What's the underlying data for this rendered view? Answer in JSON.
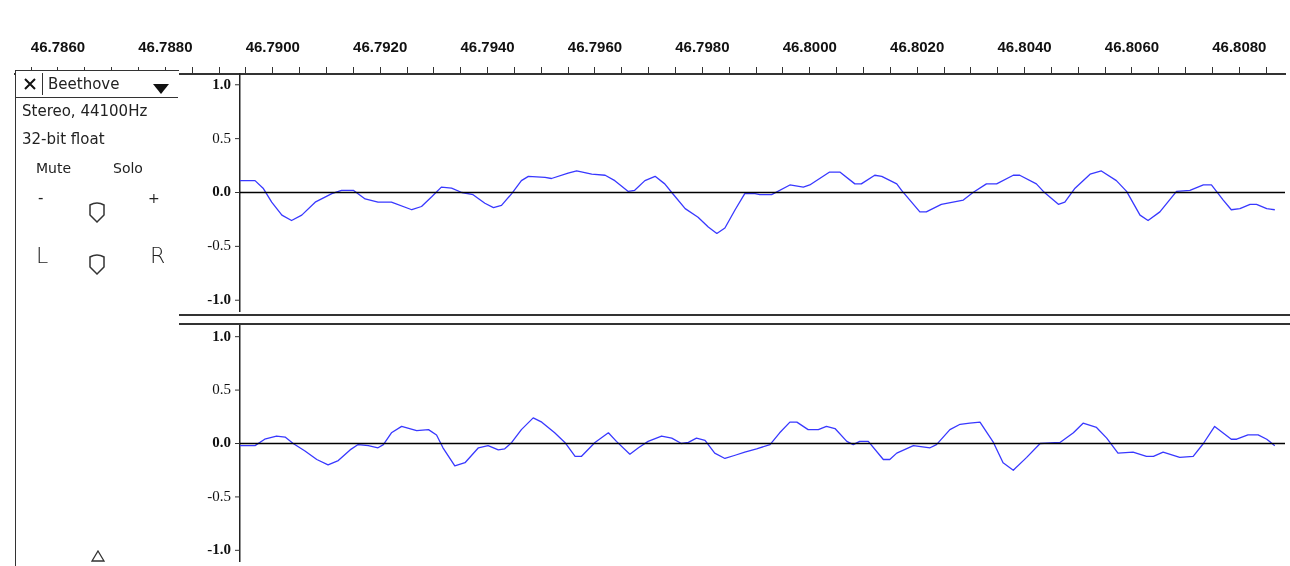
{
  "chart_data": [
    {
      "type": "line",
      "xlim": [
        46.7852,
        46.80885
      ],
      "ylim": [
        -1.1,
        1.1
      ],
      "xticks": [
        {
          "value": 46.7855,
          "label": null
        },
        {
          "value": 46.786,
          "label": "46.7860"
        },
        {
          "value": 46.7865,
          "label": null
        },
        {
          "value": 46.787,
          "label": null
        },
        {
          "value": 46.7875,
          "label": null
        },
        {
          "value": 46.788,
          "label": "46.7880"
        },
        {
          "value": 46.7885,
          "label": null
        },
        {
          "value": 46.789,
          "label": null
        },
        {
          "value": 46.7895,
          "label": null
        },
        {
          "value": 46.79,
          "label": "46.7900"
        },
        {
          "value": 46.7905,
          "label": null
        },
        {
          "value": 46.791,
          "label": null
        },
        {
          "value": 46.7915,
          "label": null
        },
        {
          "value": 46.792,
          "label": "46.7920"
        },
        {
          "value": 46.7925,
          "label": null
        },
        {
          "value": 46.793,
          "label": null
        },
        {
          "value": 46.7935,
          "label": null
        },
        {
          "value": 46.794,
          "label": "46.7940"
        },
        {
          "value": 46.7945,
          "label": null
        },
        {
          "value": 46.795,
          "label": null
        },
        {
          "value": 46.7955,
          "label": null
        },
        {
          "value": 46.796,
          "label": "46.7960"
        },
        {
          "value": 46.7965,
          "label": null
        },
        {
          "value": 46.797,
          "label": null
        },
        {
          "value": 46.7975,
          "label": null
        },
        {
          "value": 46.798,
          "label": "46.7980"
        },
        {
          "value": 46.7985,
          "label": null
        },
        {
          "value": 46.799,
          "label": null
        },
        {
          "value": 46.7995,
          "label": null
        },
        {
          "value": 46.8,
          "label": "46.8000"
        },
        {
          "value": 46.8005,
          "label": null
        },
        {
          "value": 46.801,
          "label": null
        },
        {
          "value": 46.8015,
          "label": null
        },
        {
          "value": 46.802,
          "label": "46.8020"
        },
        {
          "value": 46.8025,
          "label": null
        },
        {
          "value": 46.803,
          "label": null
        },
        {
          "value": 46.8035,
          "label": null
        },
        {
          "value": 46.804,
          "label": "46.8040"
        },
        {
          "value": 46.8045,
          "label": null
        },
        {
          "value": 46.805,
          "label": null
        },
        {
          "value": 46.8055,
          "label": null
        },
        {
          "value": 46.806,
          "label": "46.8060"
        },
        {
          "value": 46.8065,
          "label": null
        },
        {
          "value": 46.807,
          "label": null
        },
        {
          "value": 46.8075,
          "label": null
        },
        {
          "value": 46.808,
          "label": "46.8080"
        },
        {
          "value": 46.8085,
          "label": null
        }
      ],
      "yticks": [
        {
          "value": 1,
          "label": "1.0"
        },
        {
          "value": 0.5,
          "label": "0.5"
        },
        {
          "value": 0,
          "label": "0.0"
        },
        {
          "value": -0.5,
          "label": "-0.5"
        },
        {
          "value": -1,
          "label": "-1.0"
        }
      ],
      "ref_lines": [
        {
          "axis": "y",
          "value": 0,
          "color": "#000000"
        }
      ],
      "annotations": [
        "Beethove",
        "Stereo, 44100Hz",
        "32-bit float",
        "Mute",
        "Solo",
        "-",
        "+",
        "L",
        "R"
      ],
      "series": [
        {
          "color": "#3838ff",
          "x": [
            46.78939,
            46.78967,
            46.78982,
            46.78998,
            46.79017,
            46.79035,
            46.79054,
            46.79079,
            46.7911,
            46.79128,
            46.7915,
            46.79172,
            46.79196,
            46.79221,
            46.79259,
            46.79277,
            46.79296,
            46.79314,
            46.79333,
            46.79352,
            46.79373,
            46.79395,
            46.79411,
            46.79426,
            46.79445,
            46.79463,
            46.79476,
            46.79507,
            46.79519,
            46.7955,
            46.79566,
            46.79594,
            46.79619,
            46.79637,
            46.79662,
            46.79674,
            46.79693,
            46.79712,
            46.7973,
            46.79743,
            46.79768,
            46.79792,
            46.79811,
            46.79827,
            46.79842,
            46.79861,
            46.79879,
            46.79898,
            46.79907,
            46.79929,
            46.79963,
            46.79988,
            46.8,
            46.80037,
            46.80056,
            46.80084,
            46.80096,
            46.80121,
            46.80134,
            46.80162,
            46.80171,
            46.80205,
            46.80217,
            46.80245,
            46.80286,
            46.80304,
            46.80329,
            46.80348,
            46.80379,
            46.80391,
            46.80422,
            46.80435,
            46.80463,
            46.80475,
            46.80494,
            46.80522,
            46.80543,
            46.80571,
            46.8059,
            46.80615,
            46.8063,
            46.80652,
            46.80683,
            46.80708,
            46.80733,
            46.80748,
            46.8077,
            46.80785,
            46.80801,
            46.8082,
            46.80832,
            46.80851,
            46.80866
          ],
          "values": [
            0.11,
            0.11,
            0.04,
            -0.09,
            -0.21,
            -0.26,
            -0.21,
            -0.09,
            -0.01,
            0.02,
            0.02,
            -0.06,
            -0.09,
            -0.09,
            -0.16,
            -0.13,
            -0.04,
            0.05,
            0.04,
            0,
            -0.02,
            -0.1,
            -0.14,
            -0.12,
            -0.01,
            0.11,
            0.15,
            0.14,
            0.13,
            0.18,
            0.2,
            0.17,
            0.16,
            0.11,
            0.01,
            0.02,
            0.11,
            0.15,
            0.08,
            0,
            -0.15,
            -0.23,
            -0.32,
            -0.38,
            -0.33,
            -0.16,
            -0.01,
            -0.01,
            -0.02,
            -0.02,
            0.07,
            0.05,
            0.07,
            0.19,
            0.19,
            0.08,
            0.08,
            0.16,
            0.15,
            0.08,
            0.02,
            -0.18,
            -0.18,
            -0.11,
            -0.07,
            0,
            0.08,
            0.08,
            0.16,
            0.16,
            0.08,
            0.01,
            -0.11,
            -0.09,
            0.04,
            0.17,
            0.2,
            0.11,
            0.01,
            -0.21,
            -0.26,
            -0.18,
            0.01,
            0.02,
            0.07,
            0.07,
            -0.07,
            -0.16,
            -0.15,
            -0.11,
            -0.11,
            -0.15,
            -0.16
          ]
        }
      ]
    },
    {
      "type": "line",
      "xlim": [
        46.7852,
        46.80885
      ],
      "ylim": [
        -1.1,
        1.1
      ],
      "tick_labels": "y",
      "yticks": [
        {
          "value": 1,
          "label": "1.0"
        },
        {
          "value": 0.5,
          "label": "0.5"
        },
        {
          "value": 0,
          "label": "0.0"
        },
        {
          "value": -0.5,
          "label": "-0.5"
        },
        {
          "value": -1,
          "label": "-1.0"
        }
      ],
      "ref_lines": [
        {
          "axis": "y",
          "value": 0,
          "color": "#000000"
        }
      ],
      "series": [
        {
          "color": "#3838ff",
          "x": [
            46.78939,
            46.78967,
            46.78985,
            46.79007,
            46.79023,
            46.79038,
            46.7906,
            46.79082,
            46.79103,
            46.79122,
            46.79144,
            46.79159,
            46.79178,
            46.79196,
            46.79206,
            46.79221,
            46.7924,
            46.79268,
            46.7929,
            46.79305,
            46.79317,
            46.79339,
            46.79358,
            46.79383,
            46.79401,
            46.7942,
            46.79432,
            46.79445,
            46.79463,
            46.79485,
            46.79501,
            46.79525,
            46.79544,
            46.79563,
            46.79575,
            46.796,
            46.79625,
            46.7964,
            46.79665,
            46.79681,
            46.79699,
            46.79724,
            46.79743,
            46.79761,
            46.79774,
            46.79789,
            46.79805,
            46.79823,
            46.79842,
            46.79861,
            46.79879,
            46.79901,
            46.79926,
            46.79944,
            46.79963,
            46.79976,
            46.79997,
            46.80016,
            46.80031,
            46.80047,
            46.80069,
            46.80081,
            46.80093,
            46.80109,
            46.80137,
            46.80149,
            46.80162,
            46.80193,
            46.80224,
            46.80236,
            46.80261,
            46.8028,
            46.80298,
            46.80317,
            46.80342,
            46.8036,
            46.80379,
            46.80404,
            46.80429,
            46.80466,
            46.80491,
            46.80509,
            46.80534,
            46.80553,
            46.80574,
            46.80602,
            46.80627,
            46.8064,
            46.80658,
            46.80689,
            46.80714,
            46.80733,
            46.80754,
            46.80785,
            46.80795,
            46.80816,
            46.80835,
            46.80851,
            46.80866
          ],
          "values": [
            -0.02,
            -0.02,
            0.04,
            0.07,
            0.06,
            0,
            -0.07,
            -0.15,
            -0.2,
            -0.16,
            -0.06,
            -0.01,
            -0.02,
            -0.04,
            -0.01,
            0.1,
            0.16,
            0.12,
            0.13,
            0.08,
            -0.04,
            -0.21,
            -0.18,
            -0.04,
            -0.02,
            -0.06,
            -0.05,
            0.01,
            0.13,
            0.24,
            0.2,
            0.1,
            0.01,
            -0.12,
            -0.12,
            0.01,
            0.1,
            0.02,
            -0.1,
            -0.04,
            0.02,
            0.07,
            0.05,
            0,
            0.01,
            0.05,
            0.03,
            -0.09,
            -0.14,
            -0.11,
            -0.08,
            -0.05,
            -0.01,
            0.1,
            0.2,
            0.2,
            0.13,
            0.13,
            0.16,
            0.14,
            0.02,
            -0.01,
            0.02,
            0.02,
            -0.15,
            -0.15,
            -0.09,
            -0.02,
            -0.04,
            -0.01,
            0.13,
            0.18,
            0.19,
            0.2,
            0.01,
            -0.18,
            -0.25,
            -0.13,
            0,
            0.01,
            0.1,
            0.19,
            0.15,
            0.05,
            -0.09,
            -0.08,
            -0.12,
            -0.12,
            -0.08,
            -0.13,
            -0.12,
            0,
            0.16,
            0.04,
            0.04,
            0.08,
            0.08,
            0.04,
            -0.02
          ]
        }
      ]
    }
  ]
}
